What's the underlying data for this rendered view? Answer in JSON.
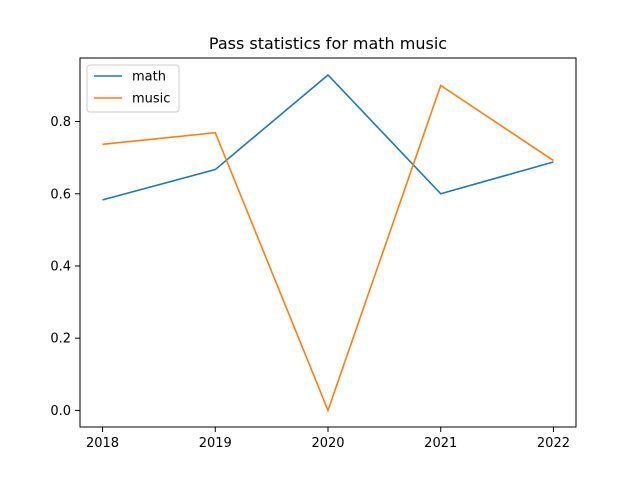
{
  "chart_data": {
    "type": "line",
    "title": "Pass statistics for math music",
    "xlabel": "",
    "ylabel": "",
    "x": [
      2018,
      2019,
      2020,
      2021,
      2022
    ],
    "x_ticks": [
      "2018",
      "2019",
      "2020",
      "2021",
      "2022"
    ],
    "xlim": [
      2017.8,
      2022.2
    ],
    "ylim": [
      -0.046,
      0.976
    ],
    "y_ticks": [
      "0.0",
      "0.2",
      "0.4",
      "0.6",
      "0.8"
    ],
    "y_tick_values": [
      0.0,
      0.2,
      0.4,
      0.6,
      0.8
    ],
    "grid": false,
    "legend_position": "top-left",
    "series": [
      {
        "name": "math",
        "color": "#1f77b4",
        "values": [
          0.583,
          0.667,
          0.929,
          0.6,
          0.688
        ]
      },
      {
        "name": "music",
        "color": "#ff7f0e",
        "values": [
          0.737,
          0.769,
          0.0,
          0.9,
          0.692
        ]
      }
    ]
  }
}
